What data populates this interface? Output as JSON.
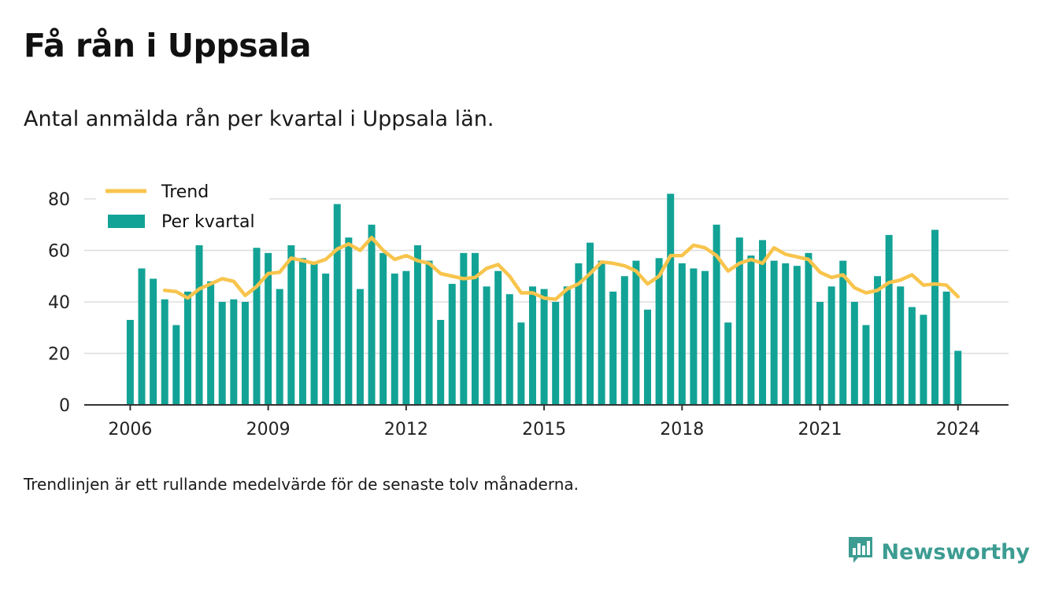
{
  "title": "Få rån i Uppsala",
  "subtitle": "Antal anmälda rån per kvartal i Uppsala län.",
  "footnote": "Trendlinjen är ett rullande medelvärde för de senaste tolv månaderna.",
  "brand": {
    "name": "Newsworthy",
    "icon": "bar-chart-speech-bubble-icon"
  },
  "colors": {
    "bars": "#12a396",
    "trend": "#f8c44c",
    "grid": "#dddddd",
    "axis": "#333333",
    "brand": "#3c9c92"
  },
  "chart_data": {
    "type": "bar",
    "x_axis": {
      "ticks": [
        "2006",
        "2009",
        "2012",
        "2015",
        "2018",
        "2021",
        "2024"
      ],
      "range": [
        2005.0,
        2025.1
      ]
    },
    "y_axis": {
      "ticks": [
        "0",
        "20",
        "40",
        "60",
        "80"
      ],
      "range": [
        0,
        80
      ]
    },
    "grid": true,
    "legend_position": "top-left",
    "series": [
      {
        "name": "Per kvartal",
        "kind": "bar",
        "start": "2006 Q1",
        "values": [
          33,
          53,
          49,
          41,
          31,
          44,
          62,
          48,
          40,
          41,
          40,
          61,
          59,
          45,
          62,
          57,
          55,
          51,
          78,
          65,
          45,
          70,
          59,
          51,
          52,
          62,
          56,
          33,
          47,
          59,
          59,
          46,
          52,
          43,
          32,
          46,
          45,
          40,
          46,
          55,
          63,
          56,
          44,
          50,
          56,
          37,
          57,
          82,
          55,
          53,
          52,
          70,
          32,
          65,
          58,
          64,
          56,
          55,
          54,
          59,
          40,
          46,
          56,
          40,
          31,
          50,
          66,
          46,
          38,
          35,
          68,
          44,
          21
        ]
      },
      {
        "name": "Trend",
        "kind": "line",
        "start": "2006 Q4",
        "values": [
          44.5,
          44,
          41.5,
          45,
          47,
          49,
          48,
          42.5,
          46,
          51,
          51.5,
          57,
          56,
          55,
          56.5,
          60.5,
          62.5,
          60,
          65,
          60,
          56.5,
          58,
          56,
          55,
          51,
          50,
          49,
          49.5,
          53,
          54.5,
          50,
          43.5,
          43.5,
          41.5,
          41,
          45,
          47,
          51,
          55.5,
          55,
          54,
          52,
          47,
          50,
          58,
          58,
          62,
          61,
          58,
          52,
          55,
          56.5,
          55,
          61,
          58.5,
          57.5,
          56.5,
          51.5,
          49.5,
          50.5,
          45.5,
          43.5,
          44.5,
          47.5,
          48.5,
          50.5,
          46.5,
          47,
          46.5,
          42
        ]
      }
    ]
  }
}
